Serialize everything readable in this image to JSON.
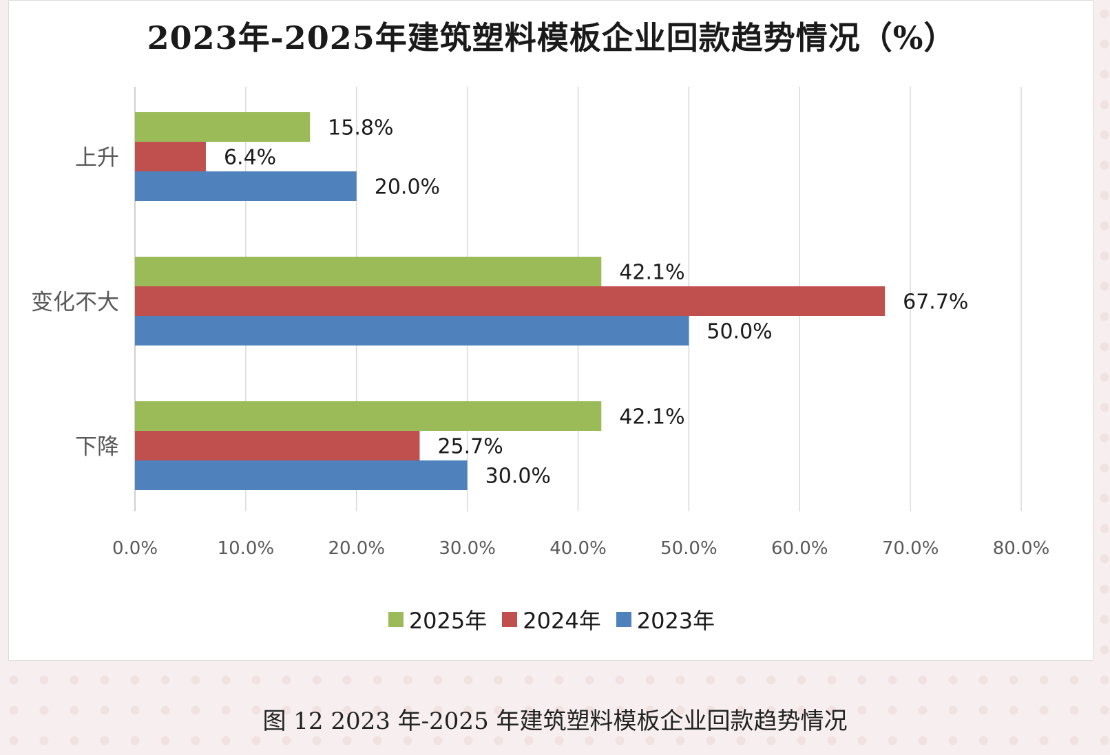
{
  "caption": "图 12   2023 年-2025 年建筑塑料模板企业回款趋势情况",
  "chart_data": {
    "type": "bar",
    "orientation": "horizontal",
    "title": "2023年-2025年建筑塑料模板企业回款趋势情况（%）",
    "categories": [
      "上升",
      "变化不大",
      "下降"
    ],
    "series": [
      {
        "name": "2025年",
        "color": "#9bbb59",
        "values": [
          15.8,
          42.1,
          42.1
        ],
        "labels": [
          "15.8%",
          "42.1%",
          "42.1%"
        ]
      },
      {
        "name": "2024年",
        "color": "#c0504d",
        "values": [
          6.4,
          67.7,
          25.7
        ],
        "labels": [
          "6.4%",
          "67.7%",
          "25.7%"
        ]
      },
      {
        "name": "2023年",
        "color": "#4f81bd",
        "values": [
          20.0,
          50.0,
          30.0
        ],
        "labels": [
          "20.0%",
          "50.0%",
          "30.0%"
        ]
      }
    ],
    "xlim": [
      0,
      80
    ],
    "xticks": [
      0,
      10,
      20,
      30,
      40,
      50,
      60,
      70,
      80
    ],
    "xtick_labels": [
      "0.0%",
      "10.0%",
      "20.0%",
      "30.0%",
      "40.0%",
      "50.0%",
      "60.0%",
      "70.0%",
      "80.0%"
    ],
    "grid": "vertical",
    "legend_position": "bottom"
  }
}
